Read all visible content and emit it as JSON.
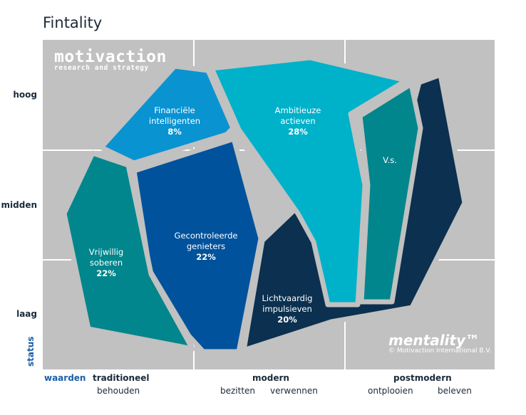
{
  "title": "Fintality",
  "logo": {
    "name": "motivaction",
    "tagline": "research and strategy"
  },
  "brand": {
    "name": "mentality™",
    "copyright": "© Motivaction International B.V."
  },
  "y_axis": {
    "title": "status",
    "levels": [
      "hoog",
      "midden",
      "laag"
    ]
  },
  "x_axis": {
    "title": "waarden",
    "groups": [
      {
        "label": "traditioneel",
        "subs": [
          "behouden"
        ]
      },
      {
        "label": "modern",
        "subs": [
          "bezitten",
          "verwennen"
        ]
      },
      {
        "label": "postmodern",
        "subs": [
          "ontplooien",
          "beleven"
        ]
      }
    ]
  },
  "segments": [
    {
      "name": "Financiële intelligenten",
      "line1": "Financiële",
      "line2": "intelligenten",
      "pct": "8%",
      "color": "#0a93d1"
    },
    {
      "name": "Ambitieuze actieven",
      "line1": "Ambitieuze",
      "line2": "actieven",
      "pct": "28%",
      "color": "#00b1ca"
    },
    {
      "name": "V.s.",
      "line1": "V.s.",
      "color": "#00868c"
    },
    {
      "name": "Gecontroleerde genieters",
      "line1": "Gecontroleerde",
      "line2": "genieters",
      "pct": "22%",
      "color": "#00529c"
    },
    {
      "name": "Vrijwillig soberen",
      "line1": "Vrijwillig",
      "line2": "soberen",
      "pct": "22%",
      "color": "#00868c"
    },
    {
      "name": "Lichtvaardig impulsieven",
      "line1": "Lichtvaardig",
      "line2": "impulsieven",
      "pct": "20%",
      "color": "#0b3050"
    }
  ],
  "colors": {
    "background": "#c0c1c0",
    "grid": "#ffffff",
    "accent": "#1a5fa8"
  }
}
